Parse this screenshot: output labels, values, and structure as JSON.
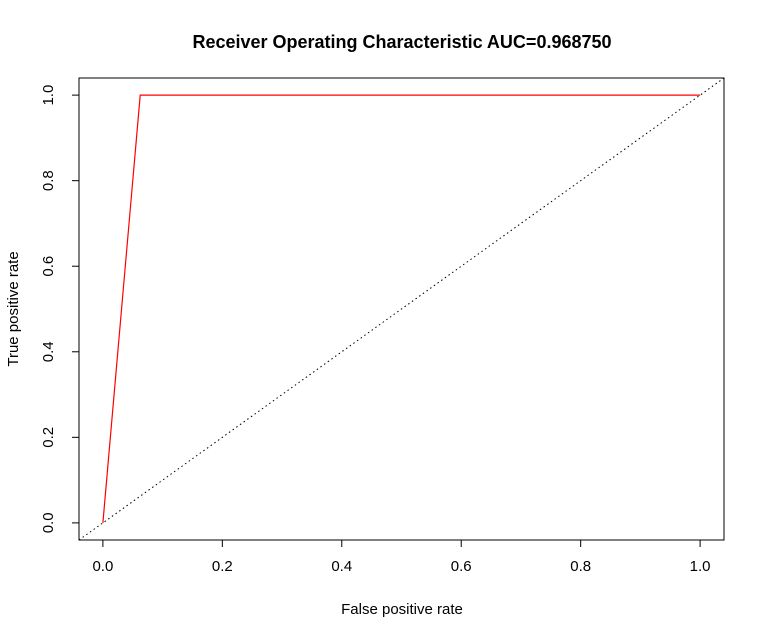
{
  "chart_data": {
    "type": "line",
    "title": "Receiver Operating Characteristic AUC=0.968750",
    "xlabel": "False positive rate",
    "ylabel": "True positive rate",
    "xlim": [
      -0.04,
      1.04
    ],
    "ylim": [
      -0.04,
      1.04
    ],
    "x_ticks": [
      0.0,
      0.2,
      0.4,
      0.6,
      0.8,
      1.0
    ],
    "y_ticks": [
      0.0,
      0.2,
      0.4,
      0.6,
      0.8,
      1.0
    ],
    "x_tick_labels": [
      "0.0",
      "0.2",
      "0.4",
      "0.6",
      "0.8",
      "1.0"
    ],
    "y_tick_labels": [
      "0.0",
      "0.2",
      "0.4",
      "0.6",
      "0.8",
      "1.0"
    ],
    "grid": false,
    "legend": "none",
    "series": [
      {
        "style": "solid",
        "color": "#ff0000",
        "x": [
          0.0,
          0.0625,
          1.0
        ],
        "y": [
          0.0,
          1.0,
          1.0
        ]
      }
    ],
    "reference_line": {
      "style": "dotted",
      "color": "#000000",
      "x": [
        -0.04,
        1.04
      ],
      "y": [
        -0.04,
        1.04
      ]
    }
  }
}
